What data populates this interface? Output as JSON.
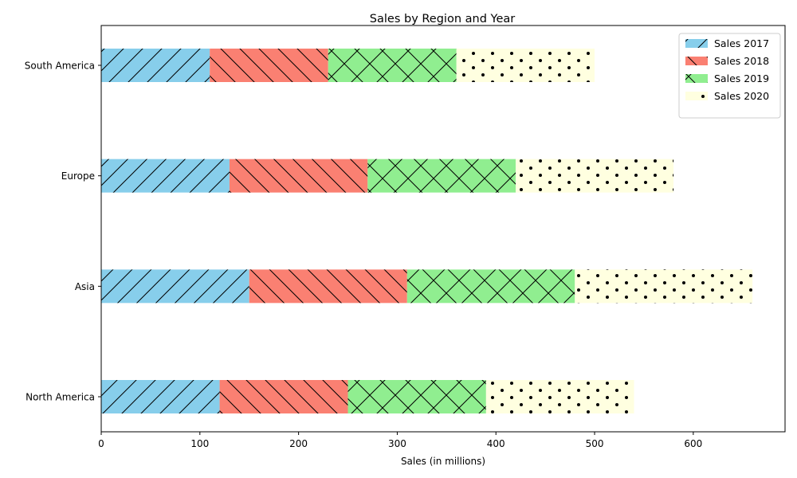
{
  "chart_data": {
    "type": "bar",
    "orientation": "horizontal",
    "stacked": true,
    "title": "Sales by Region and Year",
    "xlabel": "Sales (in millions)",
    "ylabel": "",
    "xlim": [
      0,
      693
    ],
    "xticks": [
      0,
      100,
      200,
      300,
      400,
      500,
      600
    ],
    "categories": [
      "North America",
      "Asia",
      "Europe",
      "South America"
    ],
    "series": [
      {
        "name": "Sales 2017",
        "values": [
          120,
          150,
          130,
          110
        ],
        "color": "#87ceeb",
        "hatch": "forward-diagonal"
      },
      {
        "name": "Sales 2018",
        "values": [
          130,
          160,
          140,
          120
        ],
        "color": "#fa8072",
        "hatch": "back-diagonal"
      },
      {
        "name": "Sales 2019",
        "values": [
          140,
          170,
          150,
          130
        ],
        "color": "#90ee90",
        "hatch": "crosshatch"
      },
      {
        "name": "Sales 2020",
        "values": [
          150,
          180,
          160,
          140
        ],
        "color": "#ffffe0",
        "hatch": "dots"
      }
    ],
    "grid": false,
    "legend_position": "top-right"
  }
}
